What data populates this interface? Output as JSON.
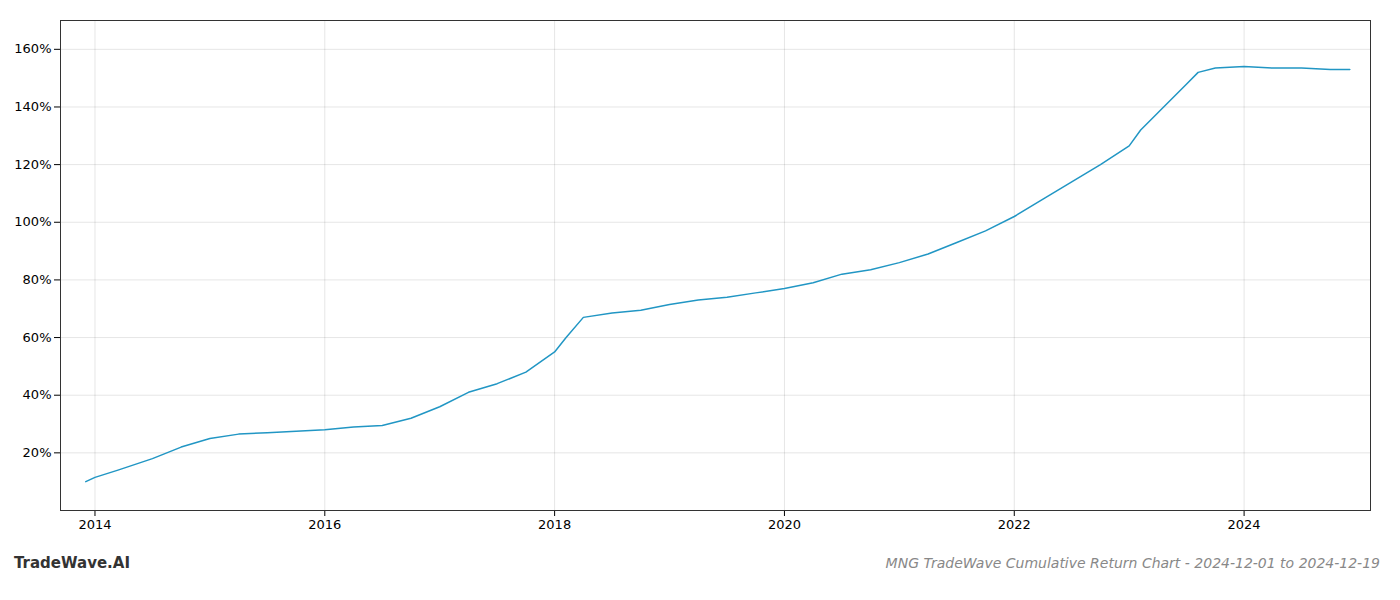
{
  "chart_data": {
    "type": "line",
    "title": "MNG TradeWave Cumulative Return Chart - 2024-12-01 to 2024-12-19",
    "annotations": [
      "TradeWave.AI"
    ],
    "x": [
      2013.92,
      2014.0,
      2014.2,
      2014.5,
      2014.75,
      2015.0,
      2015.25,
      2015.5,
      2015.75,
      2016.0,
      2016.25,
      2016.5,
      2016.75,
      2017.0,
      2017.25,
      2017.5,
      2017.75,
      2018.0,
      2018.1,
      2018.25,
      2018.5,
      2018.75,
      2019.0,
      2019.25,
      2019.5,
      2019.75,
      2020.0,
      2020.25,
      2020.5,
      2020.75,
      2021.0,
      2021.25,
      2021.5,
      2021.75,
      2022.0,
      2022.25,
      2022.5,
      2022.75,
      2023.0,
      2023.1,
      2023.25,
      2023.5,
      2023.6,
      2023.75,
      2024.0,
      2024.25,
      2024.5,
      2024.75,
      2024.92
    ],
    "values": [
      10.0,
      11.5,
      14.0,
      18.0,
      22.0,
      25.0,
      26.5,
      27.0,
      27.5,
      28.0,
      29.0,
      29.5,
      32.0,
      36.0,
      41.0,
      44.0,
      48.0,
      55.0,
      60.0,
      67.0,
      68.5,
      69.5,
      71.5,
      73.0,
      74.0,
      75.5,
      77.0,
      79.0,
      82.0,
      83.5,
      86.0,
      89.0,
      93.0,
      97.0,
      102.0,
      108.0,
      114.0,
      120.0,
      126.5,
      132.0,
      138.0,
      148.0,
      152.0,
      153.5,
      154.0,
      153.5,
      153.5,
      153.0,
      153.0
    ],
    "color": "#2196c4",
    "xlim": [
      2013.7,
      2025.1
    ],
    "xticks": [
      2014,
      2016,
      2018,
      2020,
      2022,
      2024
    ],
    "ylim": [
      0,
      170
    ],
    "yticks": [
      {
        "value": 20,
        "label": "20%"
      },
      {
        "value": 40,
        "label": "40%"
      },
      {
        "value": 60,
        "label": "60%"
      },
      {
        "value": 80,
        "label": "80%"
      },
      {
        "value": 100,
        "label": "100%"
      },
      {
        "value": 120,
        "label": "120%"
      },
      {
        "value": 140,
        "label": "140%"
      },
      {
        "value": 160,
        "label": "160%"
      }
    ],
    "grid": true
  }
}
